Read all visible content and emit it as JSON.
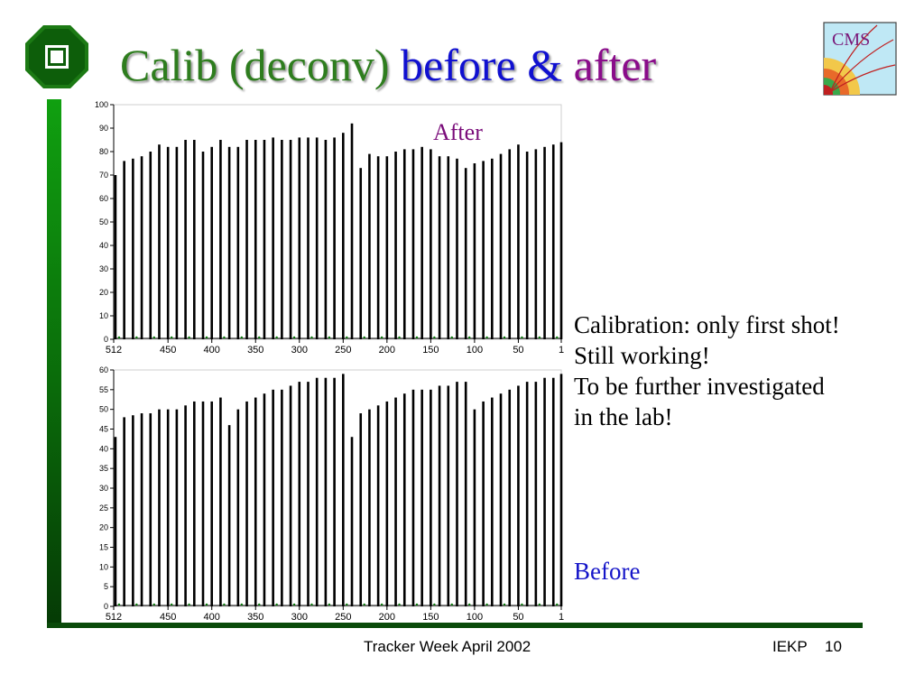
{
  "slide": {
    "title_part1": "Calib (deconv)",
    "title_part2": "before",
    "title_amp": "&",
    "title_part3": "after",
    "cms_logo_text": "CMS",
    "after_label": "After",
    "before_label": "Before",
    "notes": [
      "Calibration: only first shot!",
      "Still working!",
      "To be further investigated",
      "in the lab!"
    ],
    "footer_center": "Tracker Week April 2002",
    "footer_org": "IEKP",
    "footer_page": "10"
  },
  "colors": {
    "title_green": "#2e7d1e",
    "title_blue": "#1010d0",
    "title_purple": "#8a0c8a",
    "before_blue": "#1414c8",
    "bar_green": "#0a7a0a"
  },
  "chart_data": [
    {
      "type": "bar",
      "title": "After",
      "xlabel": "",
      "ylabel": "",
      "xlim": [
        512,
        1
      ],
      "ylim": [
        0,
        100
      ],
      "yticks": [
        0,
        10,
        20,
        30,
        40,
        50,
        60,
        70,
        80,
        90,
        100
      ],
      "xticks": [
        512,
        450,
        400,
        350,
        300,
        250,
        200,
        150,
        100,
        50,
        1
      ],
      "xtick_labels": [
        "512",
        "450",
        "400",
        "350",
        "300",
        "250",
        "200",
        "150",
        "100",
        "50",
        "1"
      ],
      "grid": false,
      "series": [
        {
          "x": [
            510,
            500,
            490,
            480,
            470,
            460,
            450,
            440,
            430,
            420,
            410,
            400,
            390,
            380,
            370,
            360,
            350,
            340,
            330,
            320,
            310,
            300,
            290,
            280,
            270,
            260,
            250,
            240,
            230,
            220,
            210,
            200,
            190,
            180,
            170,
            160,
            150,
            140,
            130,
            120,
            110,
            100,
            90,
            80,
            70,
            60,
            50,
            40,
            30,
            20,
            10,
            1
          ],
          "values": [
            70,
            76,
            77,
            78,
            80,
            83,
            82,
            82,
            85,
            85,
            80,
            82,
            85,
            82,
            82,
            85,
            85,
            85,
            86,
            85,
            85,
            86,
            86,
            86,
            85,
            86,
            88,
            92,
            73,
            79,
            78,
            78,
            80,
            81,
            81,
            82,
            81,
            78,
            78,
            77,
            73,
            75,
            76,
            77,
            79,
            81,
            83,
            80,
            81,
            82,
            83,
            84
          ]
        }
      ]
    },
    {
      "type": "bar",
      "title": "Before",
      "xlabel": "",
      "ylabel": "",
      "xlim": [
        512,
        1
      ],
      "ylim": [
        0,
        60
      ],
      "yticks": [
        0,
        5,
        10,
        15,
        20,
        25,
        30,
        35,
        40,
        45,
        50,
        55,
        60
      ],
      "xticks": [
        512,
        450,
        400,
        350,
        300,
        250,
        200,
        150,
        100,
        50,
        1
      ],
      "xtick_labels": [
        "512",
        "450",
        "400",
        "350",
        "300",
        "250",
        "200",
        "150",
        "100",
        "50",
        "1"
      ],
      "grid": false,
      "series": [
        {
          "x": [
            510,
            500,
            490,
            480,
            470,
            460,
            450,
            440,
            430,
            420,
            410,
            400,
            390,
            380,
            370,
            360,
            350,
            340,
            330,
            320,
            310,
            300,
            290,
            280,
            270,
            260,
            250,
            240,
            230,
            220,
            210,
            200,
            190,
            180,
            170,
            160,
            150,
            140,
            130,
            120,
            110,
            100,
            90,
            80,
            70,
            60,
            50,
            40,
            30,
            20,
            10,
            1
          ],
          "values": [
            43,
            48,
            48.5,
            49,
            49,
            50,
            50,
            50,
            51,
            52,
            52,
            52,
            53,
            46,
            50,
            52,
            53,
            54,
            55,
            55,
            56,
            57,
            57,
            58,
            58,
            58,
            59,
            43,
            49,
            50,
            51,
            52,
            53,
            54,
            55,
            55,
            55,
            56,
            56,
            57,
            57,
            50,
            52,
            53,
            54,
            55,
            56,
            57,
            57,
            58,
            58,
            59
          ]
        }
      ]
    }
  ]
}
